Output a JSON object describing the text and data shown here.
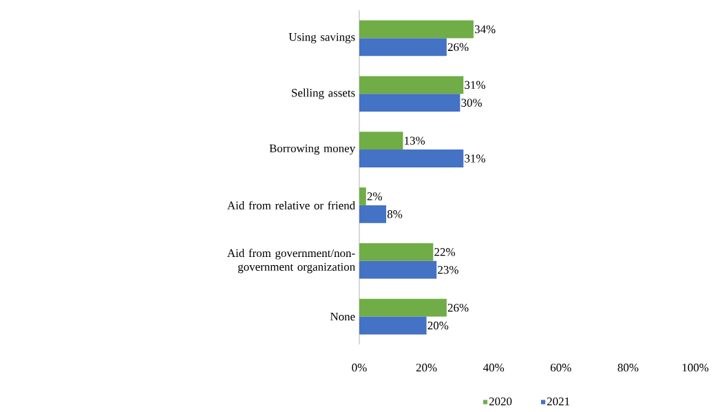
{
  "chart_data": {
    "type": "bar",
    "orientation": "horizontal",
    "categories": [
      "Using savings",
      "Selling assets",
      "Borrowing money",
      "Aid from relative or friend",
      "Aid from government/non-government organization",
      "None"
    ],
    "series": [
      {
        "name": "2020",
        "color": "#70ad47",
        "values": [
          34,
          31,
          13,
          2,
          22,
          26
        ],
        "value_labels": [
          "34%",
          "31%",
          "13%",
          "2%",
          "22%",
          "26%"
        ]
      },
      {
        "name": "2021",
        "color": "#4472c4",
        "values": [
          26,
          30,
          31,
          8,
          23,
          20
        ],
        "value_labels": [
          "26%",
          "30%",
          "31%",
          "8%",
          "23%",
          "20%"
        ]
      }
    ],
    "xlim": [
      0,
      100
    ],
    "xticks": [
      {
        "value": 0,
        "label": "0%"
      },
      {
        "value": 20,
        "label": "20%"
      },
      {
        "value": 40,
        "label": "40%"
      },
      {
        "value": 60,
        "label": "60%"
      },
      {
        "value": 80,
        "label": "80%"
      },
      {
        "value": 100,
        "label": "100%"
      }
    ],
    "grid": false,
    "legend": "bottom"
  }
}
